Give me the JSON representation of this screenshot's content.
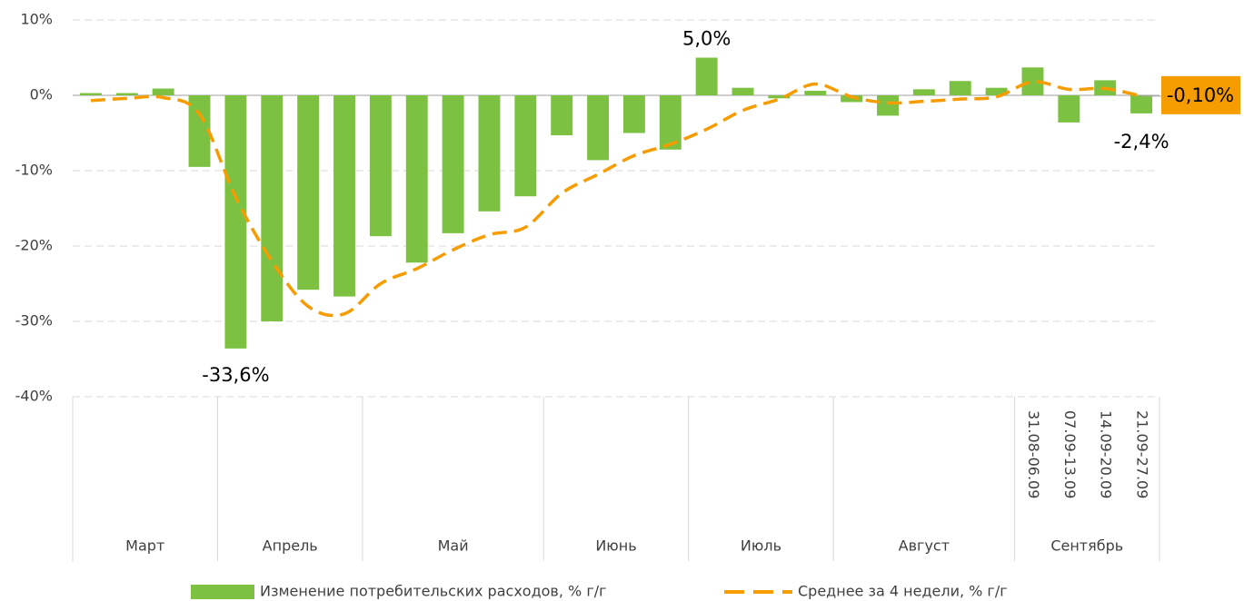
{
  "chart_data": {
    "type": "bar",
    "categories": [
      null,
      null,
      null,
      null,
      null,
      null,
      null,
      null,
      null,
      null,
      null,
      null,
      null,
      null,
      null,
      null,
      null,
      null,
      null,
      null,
      null,
      null,
      null,
      null,
      null,
      null,
      "31.08-06.09",
      "07.09-13.09",
      "14.09-20.09",
      "21.09-27.09"
    ],
    "groups": [
      {
        "label": "Март",
        "span": 4
      },
      {
        "label": "Апрель",
        "span": 4
      },
      {
        "label": "Май",
        "span": 5
      },
      {
        "label": "Июнь",
        "span": 4
      },
      {
        "label": "Июль",
        "span": 4
      },
      {
        "label": "Август",
        "span": 5
      },
      {
        "label": "Сентябрь",
        "span": 4
      }
    ],
    "series": [
      {
        "name": "Изменение потребительских расходов, % г/г",
        "type": "bar",
        "color": "#7dc142",
        "values": [
          0.3,
          0.3,
          0.9,
          -9.5,
          -33.6,
          -30,
          -25.8,
          -26.7,
          -18.7,
          -22.2,
          -18.3,
          -15.4,
          -13.4,
          -5.3,
          -8.6,
          -5,
          -7.2,
          5.0,
          1,
          -0.4,
          0.6,
          -0.9,
          -2.7,
          0.8,
          1.9,
          1.0,
          3.7,
          -3.6,
          2.0,
          -2.4
        ],
        "value_labels": [
          null,
          null,
          null,
          null,
          "-33,6%",
          null,
          null,
          null,
          null,
          null,
          null,
          null,
          null,
          null,
          null,
          null,
          null,
          "5,0%",
          null,
          null,
          null,
          null,
          null,
          null,
          null,
          null,
          null,
          null,
          null,
          "-2,4%"
        ]
      },
      {
        "name": "Среднее за 4 недели, % г/г",
        "type": "line",
        "color": "#f59c00",
        "values": [
          -0.7,
          -0.4,
          -0.3,
          -2.5,
          -13.5,
          -22,
          -28,
          -29,
          -25,
          -23,
          -20.5,
          -18.5,
          -17.5,
          -13,
          -10.5,
          -8,
          -6.5,
          -4.5,
          -2,
          -0.5,
          1.5,
          -0.2,
          -1,
          -0.8,
          -0.5,
          -0.2,
          1.8,
          0.8,
          0.9,
          -0.1
        ],
        "value_labels": [
          null,
          null,
          null,
          null,
          null,
          null,
          null,
          null,
          null,
          null,
          null,
          null,
          null,
          null,
          null,
          null,
          null,
          null,
          null,
          null,
          null,
          null,
          null,
          null,
          null,
          null,
          null,
          null,
          null,
          "-0,10%"
        ]
      }
    ],
    "ylim": [
      -40,
      10
    ],
    "yticks": [
      {
        "value": -40,
        "label": "-40%"
      },
      {
        "value": -30,
        "label": "-30%"
      },
      {
        "value": -20,
        "label": "-20%"
      },
      {
        "value": -10,
        "label": "-10%"
      },
      {
        "value": 0,
        "label": "0%"
      },
      {
        "value": 10,
        "label": "10%"
      }
    ],
    "grid": true
  }
}
